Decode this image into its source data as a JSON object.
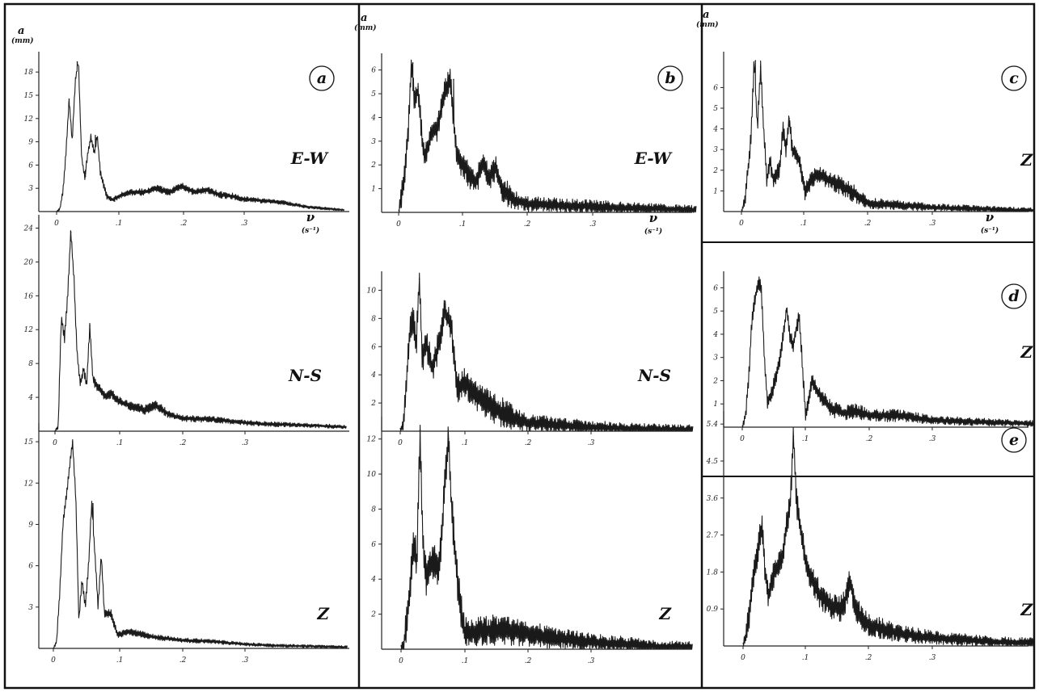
{
  "figure": {
    "frame_color": "#111111",
    "trace_color": "#1a1a1a",
    "background": "#ffffff"
  },
  "chart_data": [
    {
      "id": "a-ew",
      "type": "line",
      "panel_label": "a",
      "component": "E-W",
      "ylabel": "a",
      "yunit": "(mm)",
      "xlabel": "ν",
      "xunit": "(s⁻¹)",
      "xticks": [
        "0",
        ".1",
        ".2",
        ".3"
      ],
      "yticks": [
        "3",
        "6",
        "9",
        "12",
        "15",
        "18"
      ],
      "xlim": [
        0,
        0.46
      ],
      "ylim": [
        0,
        20
      ],
      "peaks": [
        [
          0.02,
          14.5
        ],
        [
          0.033,
          19.3
        ],
        [
          0.046,
          4.5
        ],
        [
          0.055,
          9.7
        ],
        [
          0.062,
          9.8
        ]
      ],
      "x": [
        0,
        0.005,
        0.01,
        0.015,
        0.02,
        0.025,
        0.03,
        0.035,
        0.04,
        0.045,
        0.05,
        0.055,
        0.06,
        0.065,
        0.07,
        0.08,
        0.09,
        0.1,
        0.12,
        0.14,
        0.16,
        0.18,
        0.2,
        0.22,
        0.24,
        0.26,
        0.28,
        0.3,
        0.33,
        0.36,
        0.4,
        0.46
      ],
      "y": [
        0,
        0.3,
        2.5,
        7.5,
        14.5,
        9.0,
        17.0,
        19.3,
        7.0,
        4.5,
        7.5,
        9.7,
        7.5,
        9.8,
        5.0,
        2.0,
        1.5,
        2.0,
        2.5,
        2.5,
        3.0,
        2.5,
        3.3,
        2.5,
        2.8,
        2.2,
        2.0,
        1.6,
        1.4,
        1.2,
        0.6,
        0.2
      ],
      "noise": 0.45
    },
    {
      "id": "a-ns",
      "type": "line",
      "panel_label": "",
      "component": "N-S",
      "ylabel": "",
      "yunit": "",
      "xlabel": "",
      "xunit": "",
      "xticks": [
        "0",
        ".1",
        ".2",
        ".3"
      ],
      "yticks": [
        "4",
        "8",
        "12",
        "16",
        "20",
        "24"
      ],
      "xlim": [
        0,
        0.46
      ],
      "ylim": [
        0,
        25
      ],
      "peaks": [
        [
          0.025,
          23.5
        ],
        [
          0.055,
          12.5
        ]
      ],
      "x": [
        0,
        0.005,
        0.01,
        0.015,
        0.02,
        0.025,
        0.03,
        0.035,
        0.04,
        0.045,
        0.05,
        0.055,
        0.06,
        0.07,
        0.08,
        0.09,
        0.1,
        0.12,
        0.14,
        0.16,
        0.18,
        0.2,
        0.25,
        0.3,
        0.35,
        0.4,
        0.46
      ],
      "y": [
        0,
        0.5,
        13.5,
        11.0,
        16.0,
        23.5,
        18.0,
        9.0,
        5.5,
        7.5,
        5.5,
        12.5,
        6.0,
        5.0,
        4.0,
        4.5,
        3.5,
        3.0,
        2.5,
        3.0,
        2.0,
        1.5,
        1.4,
        1.0,
        0.8,
        0.7,
        0.5
      ],
      "noise": 0.6
    },
    {
      "id": "a-z",
      "type": "line",
      "panel_label": "",
      "component": "Z",
      "ylabel": "",
      "yunit": "",
      "xlabel": "",
      "xunit": "",
      "xticks": [
        "0",
        ".1",
        ".2",
        ".3"
      ],
      "yticks": [
        "3",
        "6",
        "9",
        "12",
        "15"
      ],
      "xlim": [
        0,
        0.46
      ],
      "ylim": [
        0,
        16
      ],
      "peaks": [
        [
          0.03,
          15.0
        ],
        [
          0.062,
          10.5
        ]
      ],
      "x": [
        0,
        0.005,
        0.01,
        0.015,
        0.02,
        0.025,
        0.03,
        0.035,
        0.04,
        0.045,
        0.05,
        0.055,
        0.06,
        0.065,
        0.07,
        0.075,
        0.08,
        0.09,
        0.1,
        0.12,
        0.14,
        0.16,
        0.2,
        0.25,
        0.3,
        0.35,
        0.4,
        0.46
      ],
      "y": [
        0,
        0.5,
        4.0,
        9.0,
        11.0,
        13.0,
        15.0,
        11.0,
        2.0,
        5.0,
        3.0,
        6.0,
        10.5,
        7.0,
        3.0,
        6.8,
        2.5,
        2.5,
        1.0,
        1.2,
        1.0,
        0.8,
        0.6,
        0.5,
        0.3,
        0.2,
        0.15,
        0.1
      ],
      "noise": 0.35
    },
    {
      "id": "b-ew",
      "type": "line",
      "panel_label": "b",
      "component": "E-W",
      "ylabel": "a",
      "yunit": "(mm)",
      "xlabel": "ν",
      "xunit": "(s⁻¹)",
      "xticks": [
        "0",
        ".1",
        ".2",
        ".3"
      ],
      "yticks": [
        "1",
        "2",
        "3",
        "4",
        "5",
        "6"
      ],
      "xlim": [
        0,
        0.46
      ],
      "ylim": [
        0,
        6.5
      ],
      "peaks": [
        [
          0.022,
          6.3
        ],
        [
          0.03,
          5.3
        ],
        [
          0.075,
          5.0
        ],
        [
          0.085,
          5.6
        ]
      ],
      "x": [
        0,
        0.005,
        0.01,
        0.015,
        0.02,
        0.025,
        0.03,
        0.035,
        0.04,
        0.05,
        0.06,
        0.07,
        0.08,
        0.09,
        0.1,
        0.11,
        0.12,
        0.13,
        0.14,
        0.15,
        0.16,
        0.18,
        0.2,
        0.25,
        0.3,
        0.35,
        0.4,
        0.46
      ],
      "y": [
        0,
        0.8,
        1.8,
        3.5,
        6.3,
        4.5,
        5.3,
        3.5,
        2.2,
        3.3,
        3.5,
        5.0,
        5.6,
        2.3,
        2.0,
        1.5,
        1.3,
        2.0,
        1.4,
        1.9,
        1.0,
        0.5,
        0.35,
        0.3,
        0.25,
        0.2,
        0.15,
        0.1
      ],
      "noise": 0.55
    },
    {
      "id": "b-ns",
      "type": "line",
      "panel_label": "",
      "component": "N-S",
      "ylabel": "",
      "yunit": "",
      "xlabel": "",
      "xunit": "",
      "xticks": [
        "0",
        ".1",
        ".2",
        ".3"
      ],
      "yticks": [
        "2",
        "4",
        "6",
        "8",
        "10"
      ],
      "xlim": [
        0,
        0.46
      ],
      "ylim": [
        0,
        11
      ],
      "peaks": [
        [
          0.03,
          10.8
        ],
        [
          0.07,
          8.5
        ]
      ],
      "x": [
        0,
        0.005,
        0.01,
        0.015,
        0.02,
        0.025,
        0.03,
        0.035,
        0.04,
        0.05,
        0.06,
        0.07,
        0.08,
        0.09,
        0.1,
        0.11,
        0.12,
        0.14,
        0.16,
        0.18,
        0.2,
        0.25,
        0.3,
        0.35,
        0.4,
        0.46
      ],
      "y": [
        0,
        0.5,
        3.5,
        7.0,
        8.0,
        6.0,
        10.8,
        5.0,
        6.5,
        4.5,
        6.0,
        8.5,
        7.5,
        3.0,
        3.5,
        3.0,
        2.5,
        1.8,
        1.3,
        0.9,
        0.6,
        0.4,
        0.3,
        0.2,
        0.15,
        0.1
      ],
      "noise": 1.1
    },
    {
      "id": "b-z",
      "type": "line",
      "panel_label": "",
      "component": "Z",
      "ylabel": "",
      "yunit": "",
      "xlabel": "",
      "xunit": "",
      "xticks": [
        "0",
        ".1",
        ".2",
        ".3"
      ],
      "yticks": [
        "2",
        "4",
        "6",
        "8",
        "10",
        "12"
      ],
      "xlim": [
        0,
        0.46
      ],
      "ylim": [
        0,
        13
      ],
      "peaks": [
        [
          0.03,
          12.5
        ],
        [
          0.075,
          12.0
        ]
      ],
      "x": [
        0,
        0.005,
        0.01,
        0.015,
        0.02,
        0.025,
        0.03,
        0.035,
        0.04,
        0.05,
        0.06,
        0.065,
        0.07,
        0.075,
        0.08,
        0.09,
        0.1,
        0.12,
        0.15,
        0.2,
        0.25,
        0.3,
        0.35,
        0.4,
        0.46
      ],
      "y": [
        0,
        0.4,
        2.0,
        4.0,
        6.0,
        5.0,
        12.5,
        5.5,
        4.0,
        5.0,
        4.5,
        7.0,
        10.0,
        12.0,
        8.0,
        3.5,
        1.0,
        1.0,
        1.1,
        0.9,
        0.6,
        0.4,
        0.3,
        0.15,
        0.1
      ],
      "noise": 1.1
    },
    {
      "id": "c-z",
      "type": "line",
      "panel_label": "c",
      "component": "Z",
      "ylabel": "a",
      "yunit": "(mm)",
      "xlabel": "ν",
      "xunit": "(s⁻¹)",
      "xticks": [
        "0",
        ".1",
        ".2",
        ".3"
      ],
      "yticks": [
        "1",
        "2",
        "3",
        "4",
        "5",
        "6"
      ],
      "xlim": [
        0,
        0.46
      ],
      "ylim": [
        0,
        7.5
      ],
      "peaks": [
        [
          0.022,
          7.3
        ],
        [
          0.03,
          7.0
        ],
        [
          0.075,
          4.5
        ]
      ],
      "x": [
        0,
        0.005,
        0.01,
        0.015,
        0.02,
        0.025,
        0.03,
        0.035,
        0.04,
        0.045,
        0.05,
        0.06,
        0.065,
        0.07,
        0.075,
        0.08,
        0.09,
        0.1,
        0.11,
        0.12,
        0.14,
        0.16,
        0.18,
        0.2,
        0.25,
        0.3,
        0.35,
        0.4,
        0.46
      ],
      "y": [
        0,
        0.5,
        2.0,
        3.5,
        7.3,
        4.0,
        7.0,
        4.0,
        1.5,
        2.5,
        1.5,
        2.0,
        4.0,
        3.0,
        4.5,
        3.0,
        2.5,
        1.0,
        1.5,
        1.8,
        1.5,
        1.2,
        0.8,
        0.4,
        0.3,
        0.2,
        0.15,
        0.1,
        0.05
      ],
      "noise": 0.45
    },
    {
      "id": "d-z",
      "type": "line",
      "panel_label": "d",
      "component": "Z",
      "ylabel": "",
      "yunit": "",
      "xlabel": "",
      "xunit": "",
      "xticks": [
        "0",
        ".1",
        ".2",
        ".3"
      ],
      "yticks": [
        "1",
        "2",
        "3",
        "4",
        "5",
        "6"
      ],
      "xlim": [
        0,
        0.46
      ],
      "ylim": [
        0,
        6.5
      ],
      "peaks": [
        [
          0.028,
          6.2
        ],
        [
          0.07,
          5.1
        ],
        [
          0.09,
          4.8
        ]
      ],
      "x": [
        0,
        0.005,
        0.01,
        0.015,
        0.02,
        0.025,
        0.03,
        0.035,
        0.04,
        0.05,
        0.06,
        0.065,
        0.07,
        0.075,
        0.08,
        0.09,
        0.1,
        0.11,
        0.12,
        0.14,
        0.16,
        0.18,
        0.2,
        0.25,
        0.3,
        0.35,
        0.4,
        0.46
      ],
      "y": [
        0,
        0.5,
        2.0,
        4.5,
        5.5,
        6.2,
        6.0,
        3.0,
        1.0,
        1.8,
        3.0,
        4.0,
        5.1,
        4.0,
        3.5,
        4.8,
        0.5,
        2.0,
        1.5,
        0.8,
        0.6,
        0.7,
        0.5,
        0.5,
        0.3,
        0.25,
        0.2,
        0.15
      ],
      "noise": 0.35
    },
    {
      "id": "e-z",
      "type": "line",
      "panel_label": "e",
      "component": "Z",
      "ylabel": "",
      "yunit": "",
      "xlabel": "",
      "xunit": "",
      "xticks": [
        "0",
        ".1",
        ".2",
        ".3"
      ],
      "yticks": [
        "0.9",
        "1.8",
        "2.7",
        "3.6",
        "4.5",
        "5.4"
      ],
      "xlim": [
        0,
        0.46
      ],
      "ylim": [
        0,
        5.6
      ],
      "peaks": [
        [
          0.028,
          2.9
        ],
        [
          0.08,
          5.1
        ],
        [
          0.17,
          1.6
        ]
      ],
      "x": [
        0,
        0.005,
        0.01,
        0.015,
        0.02,
        0.025,
        0.03,
        0.035,
        0.04,
        0.05,
        0.06,
        0.07,
        0.075,
        0.08,
        0.085,
        0.09,
        0.1,
        0.11,
        0.12,
        0.13,
        0.14,
        0.15,
        0.16,
        0.17,
        0.18,
        0.2,
        0.25,
        0.3,
        0.35,
        0.4,
        0.46
      ],
      "y": [
        0,
        0.3,
        0.8,
        1.5,
        2.0,
        2.5,
        2.9,
        1.8,
        1.2,
        1.8,
        2.0,
        3.0,
        3.5,
        5.1,
        3.5,
        3.0,
        2.0,
        1.6,
        1.3,
        1.1,
        1.0,
        0.9,
        1.0,
        1.6,
        0.8,
        0.5,
        0.3,
        0.2,
        0.15,
        0.1,
        0.08
      ],
      "noise": 0.35
    }
  ]
}
